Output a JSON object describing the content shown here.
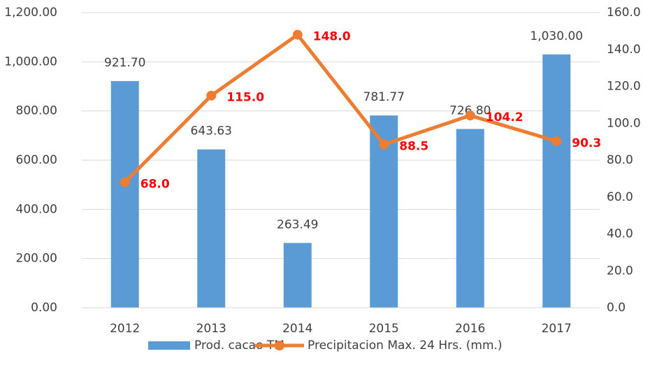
{
  "chart_data": {
    "type": "bar",
    "categories": [
      "2012",
      "2013",
      "2014",
      "2015",
      "2016",
      "2017"
    ],
    "series": [
      {
        "name": "Prod. cacao TM",
        "color": "#5b9bd5",
        "values": [
          921.7,
          643.63,
          263.49,
          781.77,
          726.8,
          1030
        ],
        "value_labels": [
          "921.70",
          "643.63",
          "263.49",
          "781.77",
          "726.80",
          "1,030.00"
        ]
      },
      {
        "name": "Precipitacion Max. 24 Hrs. (mm.)",
        "type": "line",
        "axis": "y2",
        "color": "#ed7d31",
        "label_color": "#ff0000",
        "values": [
          68,
          115,
          148,
          88.5,
          104.2,
          90.3
        ],
        "value_labels": [
          "68.0",
          "115.0",
          "148.0",
          "88.5",
          "104.2",
          "90.3"
        ]
      }
    ],
    "ylim": [
      0,
      1200
    ],
    "yticks": [
      {
        "value": 0,
        "label": "0.00"
      },
      {
        "value": 200,
        "label": "200.00"
      },
      {
        "value": 400,
        "label": "400.00"
      },
      {
        "value": 600,
        "label": "600.00"
      },
      {
        "value": 800,
        "label": "800.00"
      },
      {
        "value": 1000,
        "label": "1,000.00"
      },
      {
        "value": 1200,
        "label": "1,200.00"
      }
    ],
    "y2lim": [
      0,
      160
    ],
    "y2ticks": [
      {
        "value": 0,
        "label": "0.0"
      },
      {
        "value": 20,
        "label": "20.0"
      },
      {
        "value": 40,
        "label": "40.0"
      },
      {
        "value": 60,
        "label": "60.0"
      },
      {
        "value": 80,
        "label": "80.0"
      },
      {
        "value": 100,
        "label": "100.0"
      },
      {
        "value": 120,
        "label": "120.0"
      },
      {
        "value": 140,
        "label": "140.0"
      },
      {
        "value": 160,
        "label": "160.0"
      }
    ],
    "grid": true,
    "legend": "bottom"
  }
}
